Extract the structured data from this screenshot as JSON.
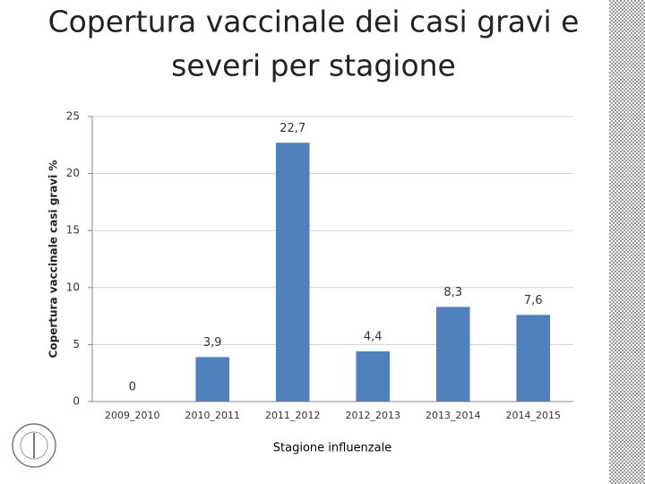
{
  "chart_data": {
    "type": "bar",
    "title": [
      "Copertura vaccinale dei casi gravi e",
      "severi per stagione"
    ],
    "x_label": "Stagione influenzale",
    "y_label": "Copertura vaccinale casi gravi %",
    "categories": [
      "2009_2010",
      "2010_2011",
      "2011_2012",
      "2012_2013",
      "2013_2014",
      "2014_2015"
    ],
    "values": [
      0,
      3.9,
      22.7,
      4.4,
      8.3,
      7.6
    ],
    "value_labels": [
      "0",
      "3,9",
      "22,7",
      "4,4",
      "8,3",
      "7,6"
    ],
    "color": "#4f81bd",
    "ylim": [
      0,
      25
    ],
    "yticks": [
      0,
      5,
      10,
      15,
      20,
      25
    ],
    "grid": true
  }
}
